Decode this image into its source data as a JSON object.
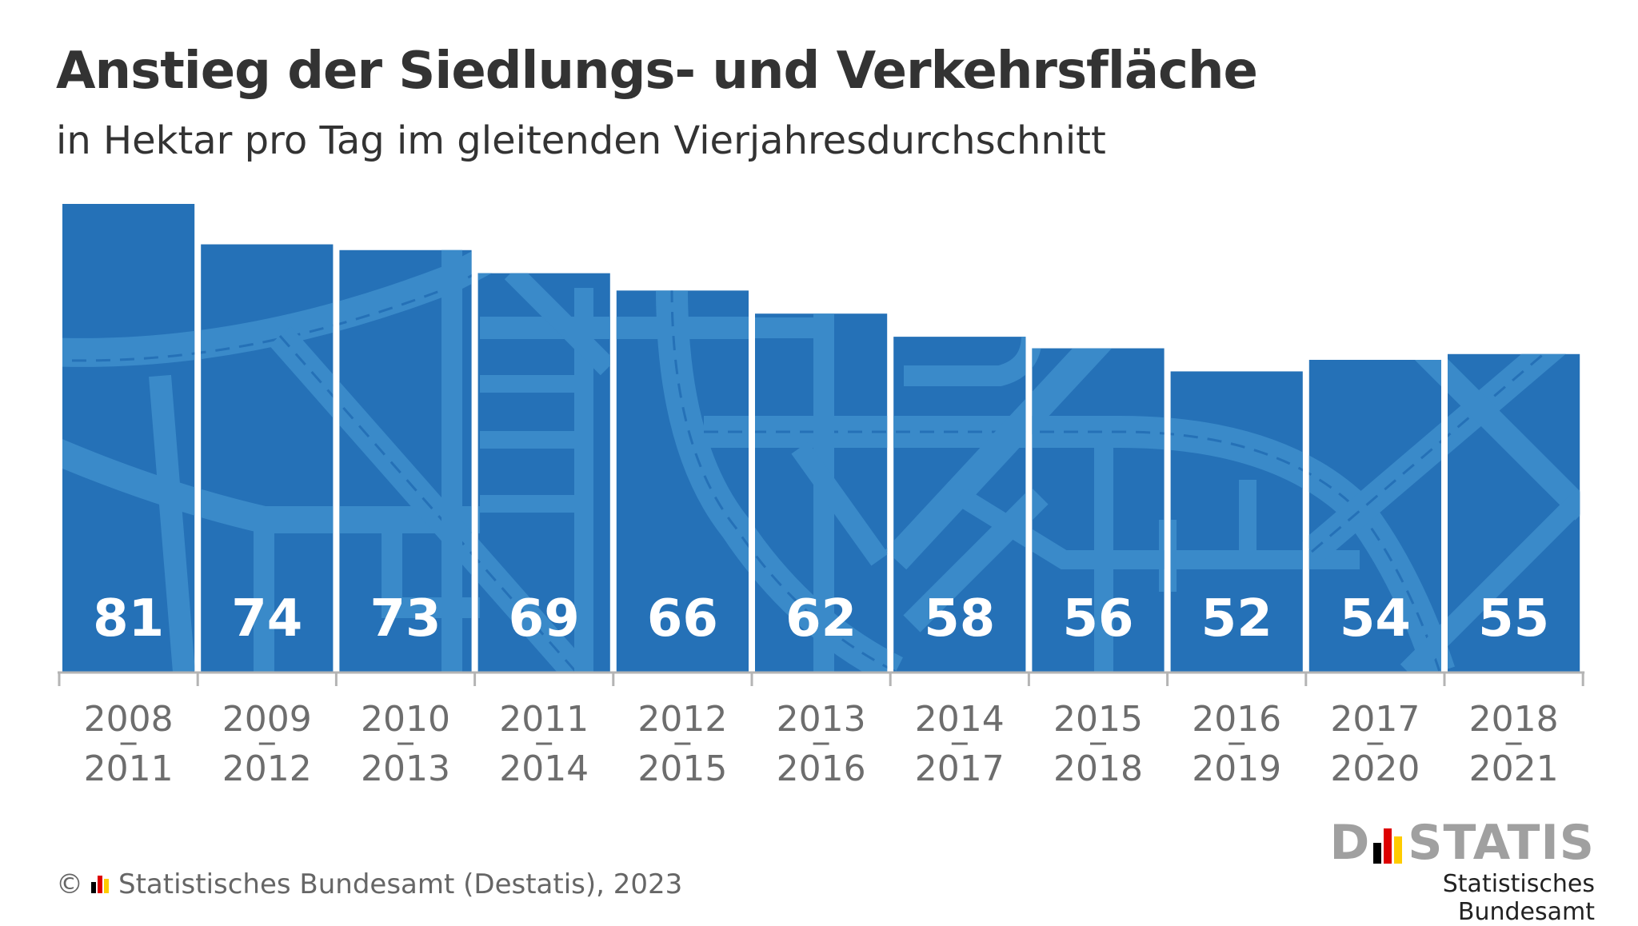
{
  "header": {
    "title": "Anstieg der Siedlungs- und Verkehrsfläche",
    "subtitle": "in Hektar pro Tag im gleitenden Vierjahresdurchschnitt"
  },
  "chart_data": {
    "type": "bar",
    "categories": [
      [
        "2008",
        "2011"
      ],
      [
        "2009",
        "2012"
      ],
      [
        "2010",
        "2013"
      ],
      [
        "2011",
        "2014"
      ],
      [
        "2012",
        "2015"
      ],
      [
        "2013",
        "2016"
      ],
      [
        "2014",
        "2017"
      ],
      [
        "2015",
        "2018"
      ],
      [
        "2016",
        "2019"
      ],
      [
        "2017",
        "2020"
      ],
      [
        "2018",
        "2021"
      ]
    ],
    "values": [
      81,
      74,
      73,
      69,
      66,
      62,
      58,
      56,
      52,
      54,
      55
    ],
    "ylim": [
      0,
      81
    ],
    "bar_color": "#2571b7",
    "road_color": "#3a8ac9",
    "grid": false
  },
  "footer": {
    "copyright_symbol": "©",
    "source": "Statistisches Bundesamt (Destatis), 2023"
  },
  "logo": {
    "word_left": "D",
    "word_right": "STATIS",
    "subtitle": "Statistisches Bundesamt",
    "flag_colors": [
      "#000000",
      "#dd0000",
      "#ffcc00"
    ]
  }
}
